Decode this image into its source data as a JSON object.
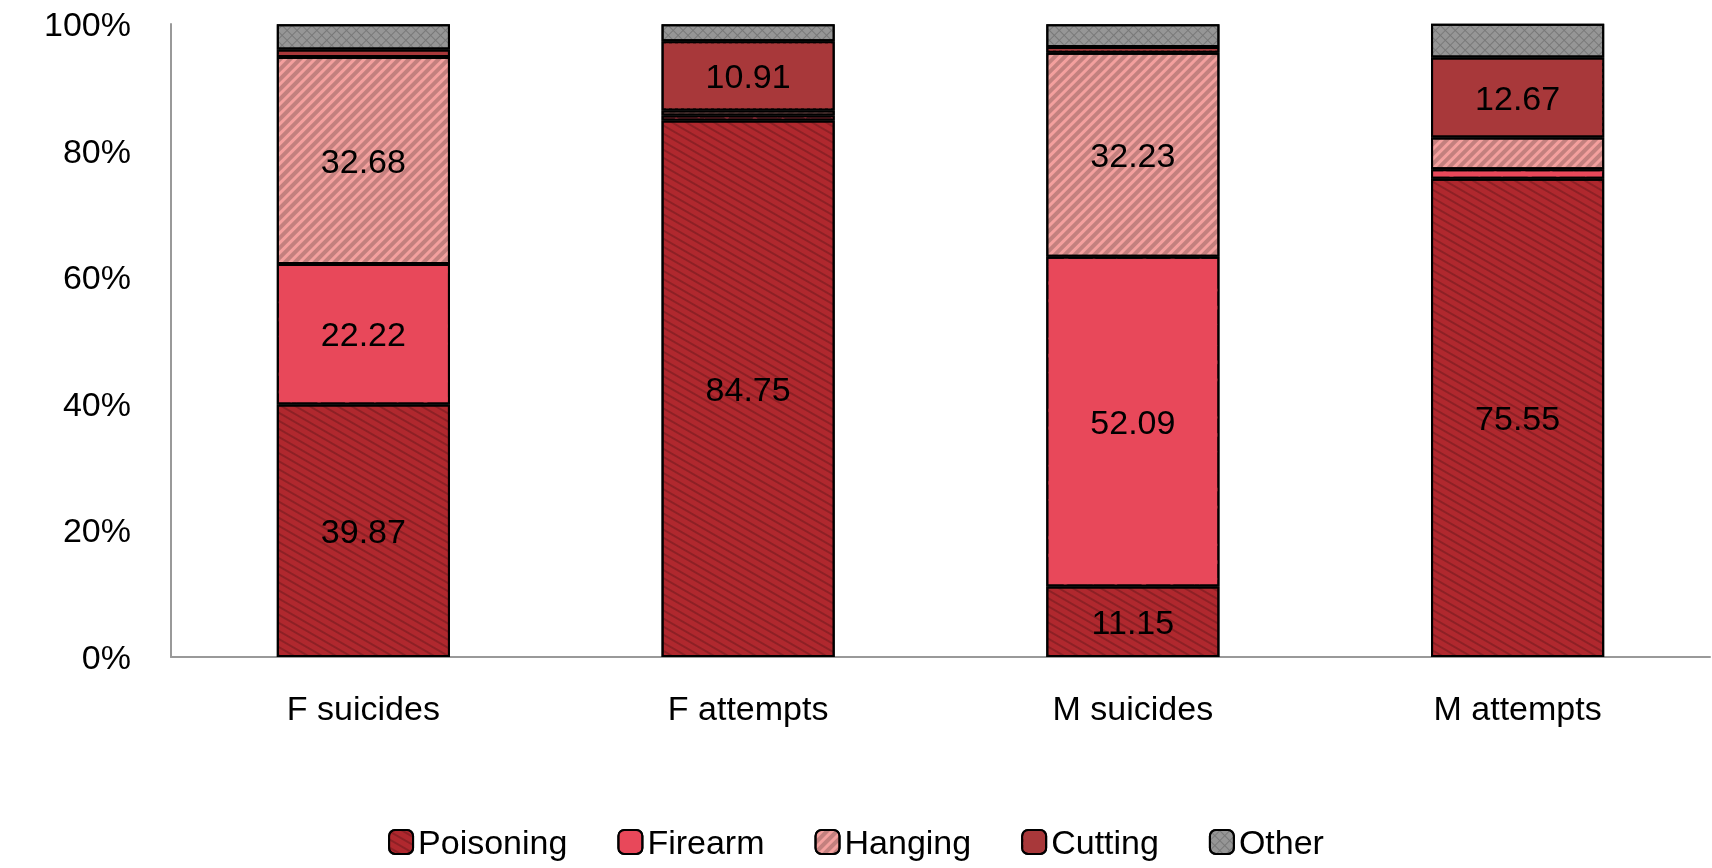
{
  "chart_data": {
    "type": "bar",
    "stacked": true,
    "categories": [
      "F suicides",
      "F attempts",
      "M suicides",
      "M attempts"
    ],
    "series": [
      {
        "name": "Poisoning",
        "color": "#b0282e",
        "values": [
          39.87,
          84.75,
          11.15,
          75.55
        ],
        "value_labels": [
          "39.87",
          "84.75",
          "11.15",
          "75.55"
        ]
      },
      {
        "name": "Firearm",
        "color": "#e8485a",
        "values": [
          22.22,
          0.8,
          52.09,
          1.5
        ],
        "value_labels": [
          "22.22",
          null,
          "52.09",
          null
        ]
      },
      {
        "name": "Hanging",
        "color": "#f4a09e",
        "values": [
          32.68,
          0.8,
          32.23,
          5.0
        ],
        "value_labels": [
          "32.68",
          null,
          "32.23",
          null
        ]
      },
      {
        "name": "Cutting",
        "color": "#a8383a",
        "values": [
          1.2,
          10.91,
          0.9,
          12.67
        ],
        "value_labels": [
          null,
          "10.91",
          null,
          "12.67"
        ]
      },
      {
        "name": "Other",
        "color": "#969696",
        "values": [
          4.0,
          2.7,
          3.6,
          5.3
        ],
        "value_labels": [
          null,
          null,
          null,
          null
        ]
      }
    ],
    "ylim": [
      0,
      100
    ],
    "yticks": [
      {
        "value": 0,
        "label": "0%"
      },
      {
        "value": 20,
        "label": "20%"
      },
      {
        "value": 40,
        "label": "40%"
      },
      {
        "value": 60,
        "label": "60%"
      },
      {
        "value": 80,
        "label": "80%"
      },
      {
        "value": 100,
        "label": "100%"
      }
    ],
    "grid": false,
    "legend": "bottom"
  }
}
